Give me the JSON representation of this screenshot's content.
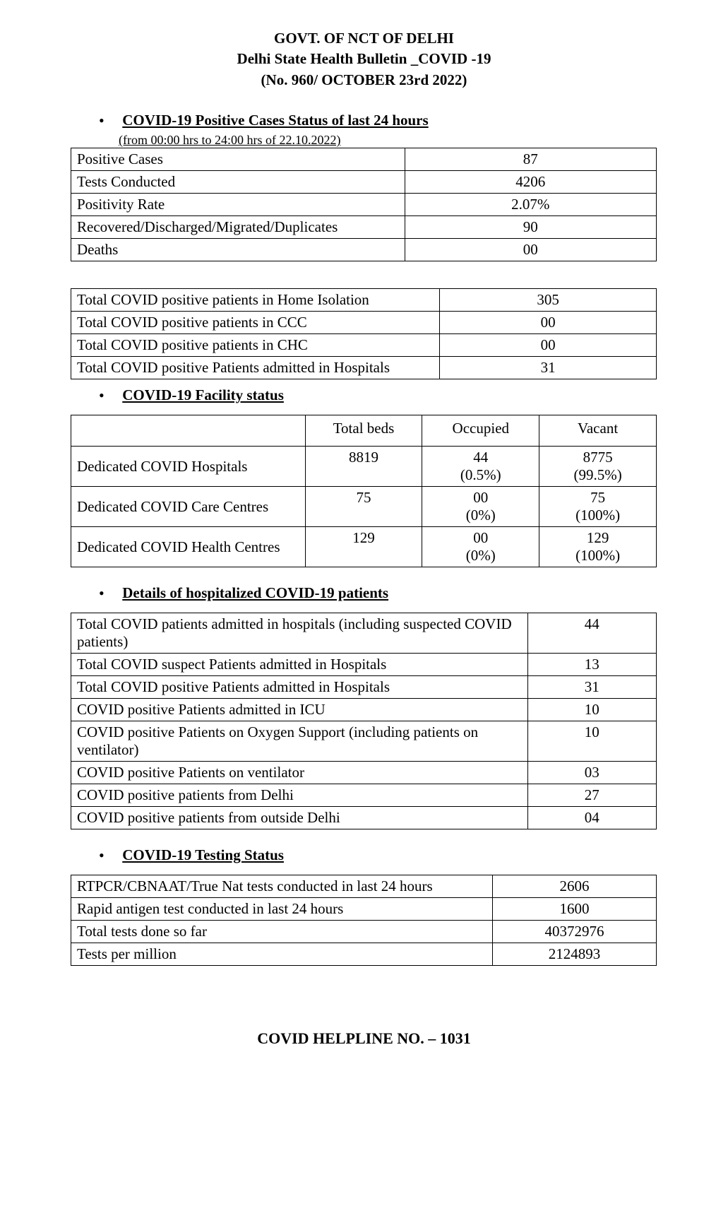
{
  "header": {
    "line1": "GOVT. OF NCT OF DELHI",
    "line2": "Delhi State Health Bulletin _COVID -19",
    "line3": "(No. 960/ OCTOBER 23rd  2022)"
  },
  "section1": {
    "title": "COVID-19 Positive Cases Status of last 24 hours",
    "subnote": "(from 00:00 hrs to 24:00 hrs of 22.10.2022)",
    "rows": [
      {
        "label": "Positive Cases",
        "value": "87"
      },
      {
        "label": "Tests Conducted",
        "value": "4206"
      },
      {
        "label": "Positivity Rate",
        "value": "2.07%"
      },
      {
        "label": "Recovered/Discharged/Migrated/Duplicates",
        "value": "90"
      },
      {
        "label": "Deaths",
        "value": "00"
      }
    ]
  },
  "section2": {
    "rows": [
      {
        "label": "Total COVID positive patients in Home Isolation",
        "value": "305"
      },
      {
        "label": "Total COVID positive patients in CCC",
        "value": "00"
      },
      {
        "label": "Total COVID positive patients in CHC",
        "value": "00"
      },
      {
        "label": "Total COVID positive Patients admitted in Hospitals",
        "value": "31"
      }
    ]
  },
  "facility": {
    "title": "COVID-19 Facility status",
    "headers": {
      "c1": "",
      "c2": "Total beds",
      "c3": "Occupied",
      "c4": "Vacant"
    },
    "rows": [
      {
        "label": "Dedicated COVID Hospitals",
        "total": "8819",
        "occ": "44",
        "occ_pct": "(0.5%)",
        "vac": "8775",
        "vac_pct": "(99.5%)"
      },
      {
        "label": "Dedicated COVID Care Centres",
        "total": "75",
        "occ": "00",
        "occ_pct": "(0%)",
        "vac": "75",
        "vac_pct": "(100%)"
      },
      {
        "label": "Dedicated COVID Health Centres",
        "total": "129",
        "occ": "00",
        "occ_pct": "(0%)",
        "vac": "129",
        "vac_pct": "(100%)"
      }
    ]
  },
  "hospitalized": {
    "title": "Details of hospitalized COVID-19 patients",
    "rows": [
      {
        "label": "Total COVID patients admitted in hospitals (including suspected COVID patients)",
        "value": "44"
      },
      {
        "label": "Total COVID suspect Patients admitted in Hospitals",
        "value": "13"
      },
      {
        "label": "Total COVID positive Patients admitted in Hospitals",
        "value": "31"
      },
      {
        "label": "COVID positive Patients admitted in ICU",
        "value": "10"
      },
      {
        "label": "COVID positive Patients on Oxygen Support (including patients on ventilator)",
        "value": "10"
      },
      {
        "label": "COVID positive Patients on ventilator",
        "value": "03"
      },
      {
        "label": "COVID positive patients from Delhi",
        "value": "27"
      },
      {
        "label": "COVID positive patients from outside Delhi",
        "value": "04"
      }
    ]
  },
  "testing": {
    "title": "COVID-19 Testing Status",
    "rows": [
      {
        "label": "RTPCR/CBNAAT/True Nat tests conducted in last 24 hours",
        "value": "2606"
      },
      {
        "label": "Rapid antigen test conducted in last 24 hours",
        "value": "1600"
      },
      {
        "label": "Total tests done so far",
        "value": "40372976"
      },
      {
        "label": "Tests per million",
        "value": "2124893"
      }
    ]
  },
  "footer": "COVID HELPLINE NO. – 1031"
}
